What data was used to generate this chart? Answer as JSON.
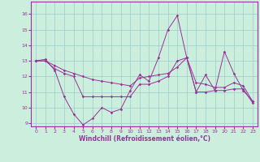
{
  "bg_color": "#cceedd",
  "grid_color": "#99cccc",
  "line_color": "#993399",
  "ylim": [
    8.8,
    16.8
  ],
  "xlim": [
    -0.5,
    23.5
  ],
  "yticks": [
    9,
    10,
    11,
    12,
    13,
    14,
    15,
    16
  ],
  "xticks": [
    0,
    1,
    2,
    3,
    4,
    5,
    6,
    7,
    8,
    9,
    10,
    11,
    12,
    13,
    14,
    15,
    16,
    17,
    18,
    19,
    20,
    21,
    22,
    23
  ],
  "xlabel": "Windchill (Refroidissement éolien,°C)",
  "series": [
    {
      "x": [
        0,
        1,
        2,
        3,
        4,
        5,
        6,
        7,
        8,
        9,
        10,
        11,
        12,
        13,
        14,
        15,
        16,
        17,
        18,
        19,
        20,
        21,
        22,
        23
      ],
      "y": [
        13.0,
        13.1,
        12.4,
        10.7,
        9.6,
        8.9,
        9.3,
        10.0,
        9.7,
        9.9,
        11.1,
        12.1,
        11.7,
        13.2,
        15.0,
        15.9,
        13.2,
        11.0,
        12.1,
        11.1,
        13.6,
        12.2,
        11.1,
        10.4
      ]
    },
    {
      "x": [
        0,
        1,
        2,
        3,
        4,
        5,
        6,
        7,
        8,
        9,
        10,
        11,
        12,
        13,
        14,
        15,
        16,
        17,
        18,
        19,
        20,
        21,
        22,
        23
      ],
      "y": [
        13.0,
        13.0,
        12.7,
        12.4,
        12.2,
        12.0,
        11.8,
        11.7,
        11.6,
        11.5,
        11.4,
        11.9,
        12.0,
        12.1,
        12.2,
        12.6,
        13.2,
        11.6,
        11.5,
        11.3,
        11.3,
        11.6,
        11.4,
        10.4
      ]
    },
    {
      "x": [
        0,
        1,
        2,
        3,
        4,
        5,
        6,
        7,
        8,
        9,
        10,
        11,
        12,
        13,
        14,
        15,
        16,
        17,
        18,
        19,
        20,
        21,
        22,
        23
      ],
      "y": [
        13.0,
        13.0,
        12.5,
        12.2,
        12.0,
        10.7,
        10.7,
        10.7,
        10.7,
        10.7,
        10.7,
        11.5,
        11.5,
        11.7,
        12.0,
        13.0,
        13.2,
        11.0,
        11.0,
        11.1,
        11.1,
        11.2,
        11.2,
        10.3
      ]
    }
  ]
}
